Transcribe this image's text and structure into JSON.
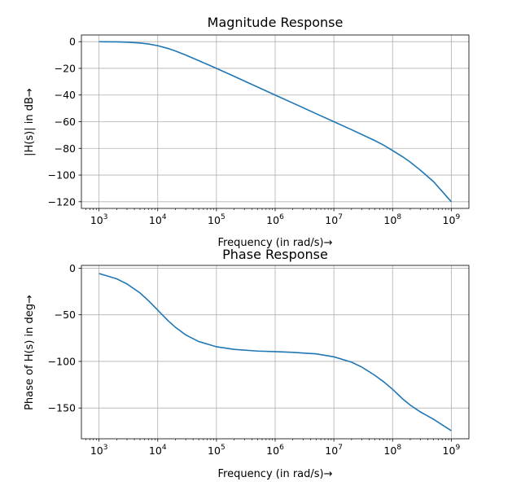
{
  "chart_data": [
    {
      "type": "line",
      "title": "Magnitude Response",
      "xlabel": "Frequency (in rad/s)→",
      "ylabel": "|H(s)| in dB→",
      "xscale": "log",
      "xlim": [
        1000,
        1000000000
      ],
      "ylim": [
        -125,
        5
      ],
      "xticks": [
        3,
        4,
        5,
        6,
        7,
        8,
        9
      ],
      "xtick_base": "10",
      "yticks": [
        0,
        -20,
        -40,
        -60,
        -80,
        -100,
        -120
      ],
      "ytick_labels": [
        "0",
        "−20",
        "−40",
        "−60",
        "−80",
        "−100",
        "−120"
      ],
      "grid": true,
      "color": "#1f77b4",
      "series": [
        {
          "x": [
            1000,
            2000,
            3000,
            5000,
            7000,
            10000,
            15000,
            20000,
            30000,
            50000,
            100000,
            200000,
            500000,
            1000000,
            2000000,
            5000000,
            10000000,
            20000000,
            30000000,
            50000000,
            70000000,
            100000000,
            150000000,
            200000000,
            300000000,
            500000000,
            1000000000
          ],
          "y": [
            -0.04,
            -0.17,
            -0.37,
            -0.97,
            -1.73,
            -3.01,
            -5.1,
            -6.99,
            -10.0,
            -14.2,
            -20.0,
            -26.0,
            -34.0,
            -40.0,
            -46.0,
            -54.0,
            -60.0,
            -66.0,
            -69.6,
            -74.2,
            -77.5,
            -81.6,
            -86.4,
            -90.3,
            -96.5,
            -105.0,
            -120.0
          ]
        }
      ]
    },
    {
      "type": "line",
      "title": "Phase Response",
      "xlabel": "Frequency (in rad/s)→",
      "ylabel": "Phase of H(s) in deg→",
      "xscale": "log",
      "xlim": [
        1000,
        1000000000
      ],
      "ylim": [
        -183,
        3
      ],
      "xticks": [
        3,
        4,
        5,
        6,
        7,
        8,
        9
      ],
      "xtick_base": "10",
      "yticks": [
        0,
        -50,
        -100,
        -150
      ],
      "ytick_labels": [
        "0",
        "−50",
        "−100",
        "−150"
      ],
      "grid": true,
      "color": "#1f77b4",
      "series": [
        {
          "x": [
            1000,
            2000,
            3000,
            5000,
            7000,
            10000,
            15000,
            20000,
            30000,
            50000,
            100000,
            200000,
            500000,
            1000000,
            2000000,
            5000000,
            10000000,
            20000000,
            30000000,
            50000000,
            70000000,
            100000000,
            150000000,
            200000000,
            300000000,
            500000000,
            1000000000
          ],
          "y": [
            -5.7,
            -11.4,
            -16.9,
            -26.6,
            -35.0,
            -45.0,
            -56.3,
            -63.4,
            -71.6,
            -78.7,
            -84.3,
            -87.1,
            -88.9,
            -89.5,
            -90.3,
            -91.9,
            -95.1,
            -100.8,
            -106.1,
            -115.0,
            -121.7,
            -129.9,
            -140.4,
            -146.9,
            -154.3,
            -162.1,
            -174.3
          ]
        }
      ]
    }
  ]
}
